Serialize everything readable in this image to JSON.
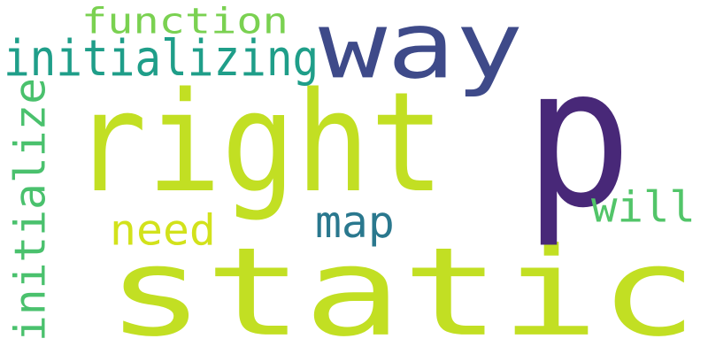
{
  "words": [
    {
      "text": "static",
      "color": "#c2df23"
    },
    {
      "text": "p",
      "color": "#482878"
    },
    {
      "text": "right",
      "color": "#c2df23"
    },
    {
      "text": "way",
      "color": "#3e4a89"
    },
    {
      "text": "initializing",
      "color": "#1f9e89"
    },
    {
      "text": "function",
      "color": "#7ad151"
    },
    {
      "text": "initialize",
      "color": "#4ac16d"
    },
    {
      "text": "map",
      "color": "#2a788e"
    },
    {
      "text": "need",
      "color": "#d2e21b"
    },
    {
      "text": "will",
      "color": "#52c569"
    }
  ]
}
